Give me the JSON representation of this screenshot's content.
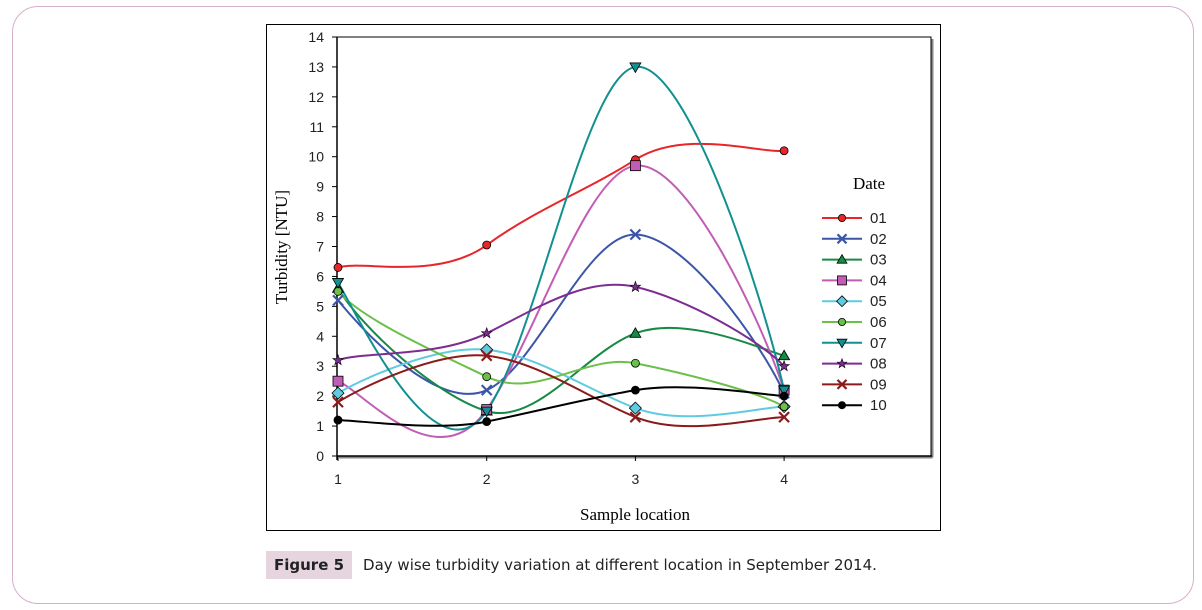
{
  "chart_data": {
    "type": "line",
    "title": "",
    "xlabel": "Sample location",
    "ylabel": "Turbidity [NTU]",
    "xlim": [
      1,
      5
    ],
    "ylim": [
      0,
      14
    ],
    "x": [
      1,
      2,
      3,
      4
    ],
    "x_ticks": [
      "1",
      "2",
      "3",
      "4"
    ],
    "y_ticks": [
      "0",
      "1",
      "2",
      "3",
      "4",
      "5",
      "6",
      "7",
      "8",
      "9",
      "10",
      "11",
      "12",
      "13",
      "14"
    ],
    "smooth": true,
    "grid": false,
    "legend_title": "Date",
    "legend_position": "right",
    "series": [
      {
        "name": "01",
        "color": "#e8262a",
        "marker": "circle",
        "values": [
          6.3,
          7.05,
          9.9,
          10.2
        ]
      },
      {
        "name": "02",
        "color": "#3b55a8",
        "marker": "x",
        "values": [
          5.2,
          2.2,
          7.4,
          2.1
        ]
      },
      {
        "name": "03",
        "color": "#178a45",
        "marker": "triangle",
        "values": [
          5.6,
          1.5,
          4.1,
          3.35
        ]
      },
      {
        "name": "04",
        "color": "#c25db5",
        "marker": "square",
        "values": [
          2.5,
          1.55,
          9.7,
          2.2
        ]
      },
      {
        "name": "05",
        "color": "#5fcbe0",
        "marker": "diamond",
        "values": [
          2.1,
          3.55,
          1.6,
          1.65
        ]
      },
      {
        "name": "06",
        "color": "#6cc04a",
        "marker": "circle",
        "values": [
          5.5,
          2.65,
          3.1,
          1.65
        ]
      },
      {
        "name": "07",
        "color": "#129090",
        "marker": "triangle-down",
        "values": [
          5.8,
          1.5,
          13.0,
          2.2
        ]
      },
      {
        "name": "08",
        "color": "#7d2d91",
        "marker": "star",
        "values": [
          3.2,
          4.1,
          5.65,
          3.0
        ]
      },
      {
        "name": "09",
        "color": "#8b1a1a",
        "marker": "x",
        "values": [
          1.8,
          3.35,
          1.3,
          1.3
        ]
      },
      {
        "name": "10",
        "color": "#000000",
        "marker": "circle",
        "values": [
          1.2,
          1.15,
          2.2,
          2.0
        ]
      }
    ]
  },
  "caption": {
    "label": "Figure 5",
    "text": "Day wise turbidity variation at different location in September 2014."
  }
}
